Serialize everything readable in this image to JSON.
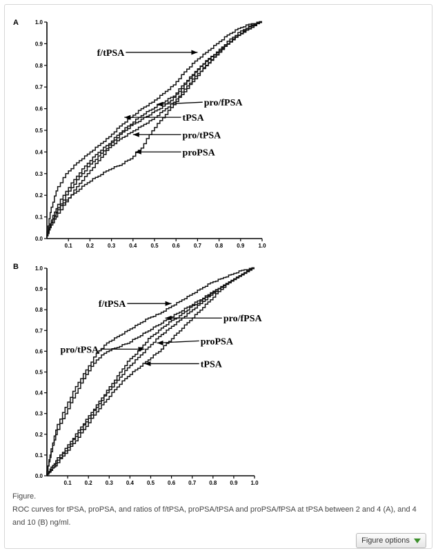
{
  "caption": {
    "label": "Figure.",
    "text": "ROC curves for tPSA, proPSA, and ratios of f/tPSA, proPSA/tPSA and proPSA/fPSA at tPSA between 2 and 4 (A), and 4 and 10 (B) ng/ml."
  },
  "figure_options_label": "Figure options",
  "chart_data": [
    {
      "type": "line",
      "panel": "A",
      "xlim": [
        0,
        1
      ],
      "ylim": [
        0,
        1
      ],
      "x_ticks": [
        "0.1",
        "0.2",
        "0.3",
        "0.4",
        "0.5",
        "0.6",
        "0.7",
        "0.8",
        "0.9",
        "1.0"
      ],
      "y_ticks": [
        "0.0",
        "0.1",
        "0.2",
        "0.3",
        "0.4",
        "0.5",
        "0.6",
        "0.7",
        "0.8",
        "0.9",
        "1.0"
      ],
      "series": [
        {
          "name": "f/tPSA",
          "x": [
            0,
            0.02,
            0.05,
            0.1,
            0.15,
            0.2,
            0.25,
            0.3,
            0.35,
            0.4,
            0.45,
            0.5,
            0.55,
            0.6,
            0.65,
            0.7,
            0.75,
            0.8,
            0.85,
            0.9,
            0.95,
            1.0
          ],
          "y": [
            0,
            0.12,
            0.22,
            0.3,
            0.35,
            0.39,
            0.43,
            0.47,
            0.52,
            0.56,
            0.6,
            0.63,
            0.67,
            0.71,
            0.77,
            0.82,
            0.86,
            0.9,
            0.94,
            0.97,
            0.99,
            1.0
          ]
        },
        {
          "name": "pro/fPSA",
          "x": [
            0,
            0.02,
            0.05,
            0.1,
            0.15,
            0.2,
            0.25,
            0.3,
            0.35,
            0.4,
            0.45,
            0.5,
            0.55,
            0.6,
            0.65,
            0.7,
            0.75,
            0.8,
            0.85,
            0.9,
            0.95,
            1.0
          ],
          "y": [
            0,
            0.07,
            0.14,
            0.22,
            0.29,
            0.35,
            0.4,
            0.44,
            0.49,
            0.53,
            0.57,
            0.6,
            0.63,
            0.66,
            0.72,
            0.77,
            0.82,
            0.86,
            0.9,
            0.94,
            0.97,
            1.0
          ]
        },
        {
          "name": "tPSA",
          "x": [
            0,
            0.02,
            0.05,
            0.1,
            0.15,
            0.2,
            0.25,
            0.3,
            0.35,
            0.4,
            0.45,
            0.5,
            0.55,
            0.6,
            0.65,
            0.7,
            0.75,
            0.8,
            0.85,
            0.9,
            0.95,
            1.0
          ],
          "y": [
            0,
            0.06,
            0.12,
            0.2,
            0.27,
            0.33,
            0.38,
            0.43,
            0.48,
            0.52,
            0.55,
            0.58,
            0.61,
            0.65,
            0.71,
            0.77,
            0.82,
            0.86,
            0.91,
            0.95,
            0.98,
            1.0
          ]
        },
        {
          "name": "pro/tPSA",
          "x": [
            0,
            0.02,
            0.05,
            0.1,
            0.15,
            0.2,
            0.25,
            0.3,
            0.35,
            0.4,
            0.45,
            0.5,
            0.55,
            0.6,
            0.65,
            0.7,
            0.75,
            0.8,
            0.85,
            0.9,
            0.95,
            1.0
          ],
          "y": [
            0,
            0.05,
            0.1,
            0.17,
            0.24,
            0.3,
            0.36,
            0.42,
            0.46,
            0.49,
            0.52,
            0.55,
            0.59,
            0.63,
            0.69,
            0.75,
            0.8,
            0.85,
            0.9,
            0.94,
            0.97,
            1.0
          ]
        },
        {
          "name": "proPSA",
          "x": [
            0,
            0.02,
            0.05,
            0.1,
            0.15,
            0.2,
            0.25,
            0.3,
            0.35,
            0.4,
            0.45,
            0.5,
            0.55,
            0.6,
            0.65,
            0.7,
            0.75,
            0.8,
            0.85,
            0.9,
            0.95,
            1.0
          ],
          "y": [
            0,
            0.06,
            0.12,
            0.18,
            0.22,
            0.26,
            0.29,
            0.32,
            0.34,
            0.37,
            0.42,
            0.5,
            0.56,
            0.62,
            0.68,
            0.74,
            0.8,
            0.85,
            0.9,
            0.94,
            0.98,
            1.0
          ]
        }
      ],
      "annotations": [
        {
          "label": "f/tPSA",
          "tx": 0.36,
          "ty": 0.86,
          "ax": 0.7,
          "ay": 0.86,
          "anchor": "end",
          "arrow": "right"
        },
        {
          "label": "pro/fPSA",
          "tx": 0.73,
          "ty": 0.63,
          "ax": 0.51,
          "ay": 0.62,
          "anchor": "start",
          "arrow": "left"
        },
        {
          "label": "tPSA",
          "tx": 0.63,
          "ty": 0.56,
          "ax": 0.36,
          "ay": 0.56,
          "anchor": "start",
          "arrow": "left"
        },
        {
          "label": "pro/tPSA",
          "tx": 0.63,
          "ty": 0.48,
          "ax": 0.4,
          "ay": 0.48,
          "anchor": "start",
          "arrow": "left"
        },
        {
          "label": "proPSA",
          "tx": 0.63,
          "ty": 0.4,
          "ax": 0.41,
          "ay": 0.4,
          "anchor": "start",
          "arrow": "left"
        }
      ]
    },
    {
      "type": "line",
      "panel": "B",
      "xlim": [
        0,
        1
      ],
      "ylim": [
        0,
        1
      ],
      "x_ticks": [
        "0.1",
        "0.2",
        "0.3",
        "0.4",
        "0.5",
        "0.6",
        "0.7",
        "0.8",
        "0.9",
        "1.0"
      ],
      "y_ticks": [
        "0.0",
        "0.1",
        "0.2",
        "0.3",
        "0.4",
        "0.5",
        "0.6",
        "0.7",
        "0.8",
        "0.9",
        "1.0"
      ],
      "series": [
        {
          "name": "f/tPSA",
          "x": [
            0,
            0.02,
            0.05,
            0.1,
            0.15,
            0.2,
            0.25,
            0.3,
            0.35,
            0.4,
            0.45,
            0.5,
            0.55,
            0.6,
            0.65,
            0.7,
            0.75,
            0.8,
            0.85,
            0.9,
            0.95,
            1.0
          ],
          "y": [
            0,
            0.1,
            0.22,
            0.33,
            0.43,
            0.51,
            0.59,
            0.64,
            0.67,
            0.7,
            0.73,
            0.76,
            0.78,
            0.81,
            0.84,
            0.87,
            0.9,
            0.93,
            0.95,
            0.97,
            0.99,
            1.0
          ]
        },
        {
          "name": "pro/tPSA",
          "x": [
            0,
            0.02,
            0.05,
            0.1,
            0.15,
            0.2,
            0.25,
            0.3,
            0.35,
            0.4,
            0.45,
            0.5,
            0.55,
            0.6,
            0.65,
            0.7,
            0.75,
            0.8,
            0.85,
            0.9,
            0.95,
            1.0
          ],
          "y": [
            0,
            0.09,
            0.2,
            0.3,
            0.4,
            0.49,
            0.56,
            0.6,
            0.62,
            0.64,
            0.67,
            0.7,
            0.73,
            0.76,
            0.79,
            0.82,
            0.85,
            0.88,
            0.91,
            0.94,
            0.97,
            1.0
          ]
        },
        {
          "name": "pro/fPSA",
          "x": [
            0,
            0.02,
            0.05,
            0.1,
            0.15,
            0.2,
            0.25,
            0.3,
            0.35,
            0.4,
            0.45,
            0.5,
            0.55,
            0.6,
            0.65,
            0.7,
            0.75,
            0.8,
            0.85,
            0.9,
            0.95,
            1.0
          ],
          "y": [
            0,
            0.03,
            0.07,
            0.13,
            0.2,
            0.27,
            0.34,
            0.41,
            0.48,
            0.55,
            0.6,
            0.66,
            0.7,
            0.74,
            0.77,
            0.81,
            0.84,
            0.88,
            0.91,
            0.94,
            0.97,
            1.0
          ]
        },
        {
          "name": "proPSA",
          "x": [
            0,
            0.02,
            0.05,
            0.1,
            0.15,
            0.2,
            0.25,
            0.3,
            0.35,
            0.4,
            0.45,
            0.5,
            0.55,
            0.6,
            0.65,
            0.7,
            0.75,
            0.8,
            0.85,
            0.9,
            0.95,
            1.0
          ],
          "y": [
            0,
            0.02,
            0.06,
            0.12,
            0.19,
            0.26,
            0.33,
            0.4,
            0.46,
            0.52,
            0.57,
            0.62,
            0.67,
            0.71,
            0.75,
            0.79,
            0.83,
            0.87,
            0.91,
            0.94,
            0.97,
            1.0
          ]
        },
        {
          "name": "tPSA",
          "x": [
            0,
            0.02,
            0.05,
            0.1,
            0.15,
            0.2,
            0.25,
            0.3,
            0.35,
            0.4,
            0.45,
            0.5,
            0.55,
            0.6,
            0.65,
            0.7,
            0.75,
            0.8,
            0.85,
            0.9,
            0.95,
            1.0
          ],
          "y": [
            0,
            0.02,
            0.05,
            0.11,
            0.17,
            0.24,
            0.31,
            0.37,
            0.43,
            0.48,
            0.52,
            0.56,
            0.6,
            0.65,
            0.7,
            0.75,
            0.8,
            0.85,
            0.9,
            0.94,
            0.97,
            1.0
          ]
        }
      ],
      "annotations": [
        {
          "label": "f/tPSA",
          "tx": 0.38,
          "ty": 0.83,
          "ax": 0.6,
          "ay": 0.83,
          "anchor": "end",
          "arrow": "right"
        },
        {
          "label": "pro/fPSA",
          "tx": 0.85,
          "ty": 0.76,
          "ax": 0.57,
          "ay": 0.76,
          "anchor": "start",
          "arrow": "left"
        },
        {
          "label": "proPSA",
          "tx": 0.74,
          "ty": 0.65,
          "ax": 0.53,
          "ay": 0.64,
          "anchor": "start",
          "arrow": "left"
        },
        {
          "label": "pro/tPSA",
          "tx": 0.25,
          "ty": 0.61,
          "ax": 0.47,
          "ay": 0.61,
          "anchor": "end",
          "arrow": "right"
        },
        {
          "label": "tPSA",
          "tx": 0.74,
          "ty": 0.54,
          "ax": 0.47,
          "ay": 0.54,
          "anchor": "start",
          "arrow": "left"
        }
      ]
    }
  ]
}
